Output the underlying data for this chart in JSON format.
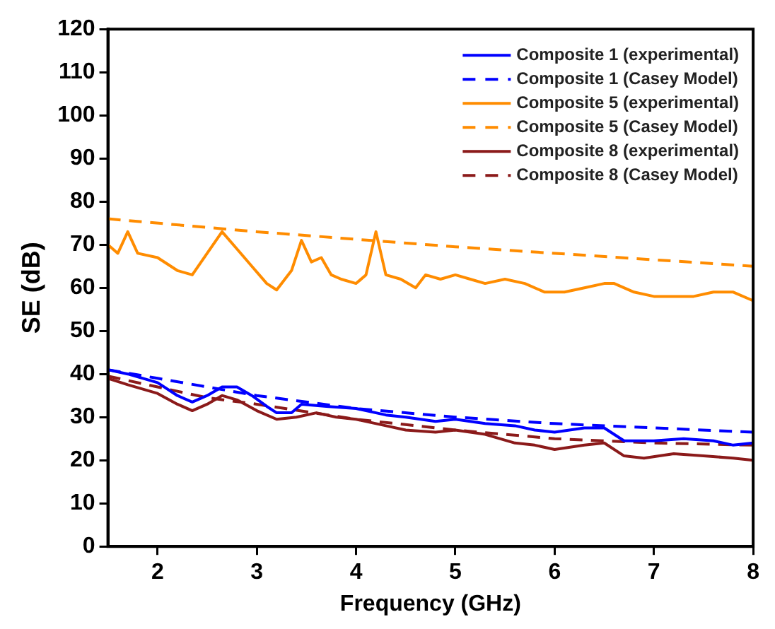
{
  "chart_data": {
    "type": "line",
    "xlabel": "Frequency (GHz)",
    "ylabel": "SE (dB)",
    "xlim": [
      1.5,
      8
    ],
    "xticks": [
      2,
      3,
      4,
      5,
      6,
      7,
      8
    ],
    "ylim": [
      0,
      120
    ],
    "yticks": [
      0,
      10,
      20,
      30,
      40,
      50,
      60,
      70,
      80,
      90,
      100,
      110,
      120
    ],
    "grid": false,
    "legend": "top right",
    "marker": "none",
    "series": [
      {
        "name": "Composite 1 (experimental)",
        "color": "#0000ff",
        "line_style": "solid",
        "x": [
          1.5,
          1.7,
          2,
          2.2,
          2.35,
          2.5,
          2.65,
          2.8,
          2.95,
          3.1,
          3.2,
          3.35,
          3.45,
          3.7,
          4,
          4.3,
          4.5,
          4.8,
          5,
          5.3,
          5.6,
          5.8,
          6,
          6.3,
          6.5,
          6.7,
          7,
          7.3,
          7.6,
          7.8,
          8
        ],
        "values": [
          41,
          40,
          38,
          35,
          33.5,
          35,
          37,
          37,
          35,
          32.5,
          31,
          31,
          33,
          32.5,
          32,
          30.5,
          30,
          29,
          29.5,
          28.5,
          28,
          27,
          26.5,
          27.5,
          27.5,
          24.5,
          24.5,
          25,
          24.5,
          23.5,
          24
        ]
      },
      {
        "name": "Composite 1 (Casey Model)",
        "color": "#0000ff",
        "line_style": "dashed",
        "x": [
          1.5,
          2,
          3,
          4,
          5,
          6,
          7,
          8
        ],
        "values": [
          41,
          39,
          35,
          32,
          30,
          28.5,
          27.5,
          26.5
        ]
      },
      {
        "name": "Composite 5 (experimental)",
        "color": "#ff8c00",
        "line_style": "solid",
        "x": [
          1.5,
          1.6,
          1.7,
          1.8,
          2,
          2.2,
          2.35,
          2.5,
          2.65,
          2.8,
          2.95,
          3.1,
          3.2,
          3.35,
          3.45,
          3.55,
          3.65,
          3.75,
          3.85,
          4,
          4.1,
          4.2,
          4.3,
          4.45,
          4.6,
          4.7,
          4.85,
          5,
          5.15,
          5.3,
          5.5,
          5.7,
          5.9,
          6.1,
          6.3,
          6.5,
          6.6,
          6.8,
          7,
          7.2,
          7.4,
          7.6,
          7.8,
          8
        ],
        "values": [
          70,
          68,
          73,
          68,
          67,
          64,
          63,
          68,
          73,
          69,
          65,
          61,
          59.5,
          64,
          71,
          66,
          67,
          63,
          62,
          61,
          63,
          73,
          63,
          62,
          60,
          63,
          62,
          63,
          62,
          61,
          62,
          61,
          59,
          59,
          60,
          61,
          61,
          59,
          58,
          58,
          58,
          59,
          59,
          57
        ]
      },
      {
        "name": "Composite 5 (Casey Model)",
        "color": "#ff8c00",
        "line_style": "dashed",
        "x": [
          1.5,
          3,
          5,
          8
        ],
        "values": [
          76,
          73,
          69.5,
          65
        ]
      },
      {
        "name": "Composite 8 (experimental)",
        "color": "#8b1a1a",
        "line_style": "solid",
        "x": [
          1.5,
          1.7,
          2,
          2.2,
          2.35,
          2.5,
          2.65,
          2.8,
          3,
          3.2,
          3.4,
          3.6,
          3.8,
          4,
          4.3,
          4.5,
          4.8,
          5,
          5.3,
          5.6,
          5.8,
          6,
          6.3,
          6.5,
          6.7,
          6.9,
          7.2,
          7.5,
          7.8,
          8
        ],
        "values": [
          39,
          37.5,
          35.5,
          33,
          31.5,
          33,
          35,
          34,
          31.5,
          29.5,
          30,
          31,
          30,
          29.5,
          28,
          27,
          26.5,
          27,
          26,
          24,
          23.5,
          22.5,
          23.5,
          24,
          21,
          20.5,
          21.5,
          21,
          20.5,
          20
        ]
      },
      {
        "name": "Composite 8 (Casey Model)",
        "color": "#8b1a1a",
        "line_style": "dashed",
        "x": [
          1.5,
          2,
          2.5,
          3,
          4,
          5,
          6,
          7,
          8
        ],
        "values": [
          39.5,
          37,
          34.5,
          33,
          29.5,
          27,
          25,
          24,
          23.5
        ]
      }
    ]
  }
}
